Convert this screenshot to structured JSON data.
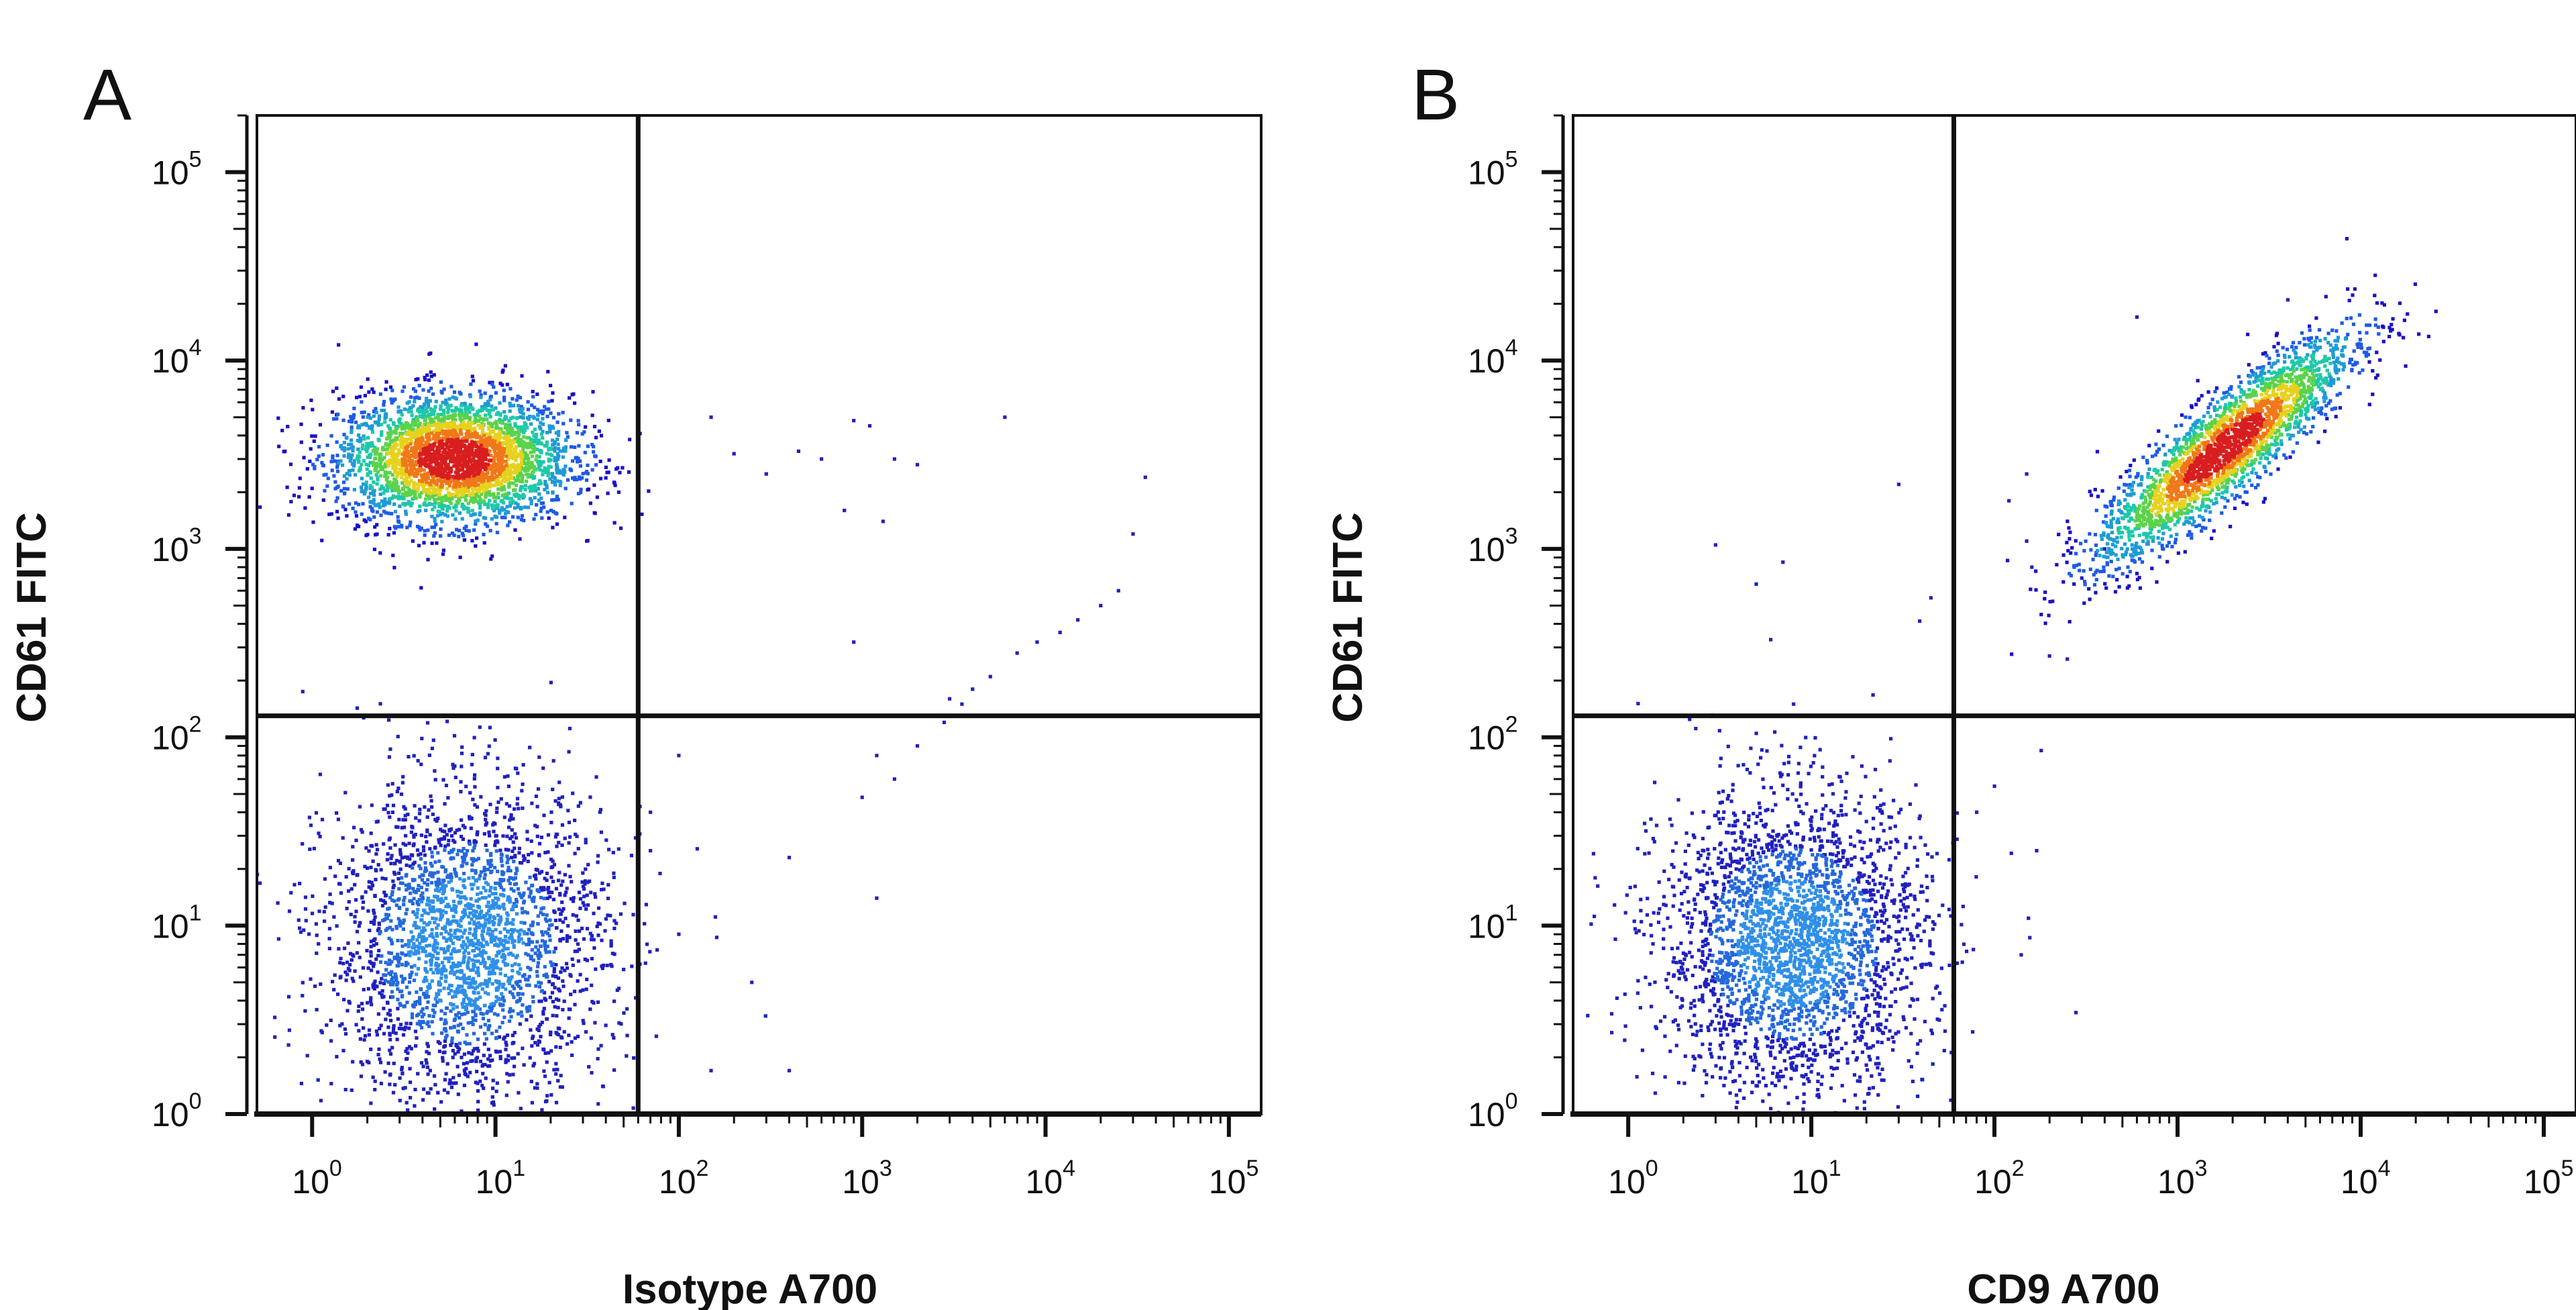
{
  "chart_data": [
    {
      "panel": "A",
      "type": "scatter",
      "xlabel": "Isotype A700",
      "ylabel": "CD61 FITC",
      "x_scale": "log",
      "y_scale": "log",
      "xlim": [
        0.5,
        150000
      ],
      "ylim": [
        1,
        200000
      ],
      "x_ticks": [
        {
          "base": "10",
          "exp": "0"
        },
        {
          "base": "10",
          "exp": "1"
        },
        {
          "base": "10",
          "exp": "2"
        },
        {
          "base": "10",
          "exp": "3"
        },
        {
          "base": "10",
          "exp": "4"
        },
        {
          "base": "10",
          "exp": "5"
        }
      ],
      "y_ticks": [
        {
          "base": "10",
          "exp": "0"
        },
        {
          "base": "10",
          "exp": "1"
        },
        {
          "base": "10",
          "exp": "2"
        },
        {
          "base": "10",
          "exp": "3"
        },
        {
          "base": "10",
          "exp": "4"
        },
        {
          "base": "10",
          "exp": "5"
        }
      ],
      "quadrant_gate": {
        "x": 60,
        "y": 130
      },
      "populations": [
        {
          "center": [
            6,
            3000
          ],
          "spread_decades": [
            0.32,
            0.17
          ],
          "count": 3200,
          "density_colored": true
        },
        {
          "center": [
            7,
            8
          ],
          "spread_decades": [
            0.38,
            0.42
          ],
          "count": 2600,
          "density_colored": false
        }
      ],
      "sparse_events": [
        [
          150,
          5000
        ],
        [
          200,
          3200
        ],
        [
          300,
          2500
        ],
        [
          450,
          3300
        ],
        [
          600,
          3000
        ],
        [
          900,
          4800
        ],
        [
          1100,
          4500
        ],
        [
          1500,
          3000
        ],
        [
          2000,
          2800
        ],
        [
          800,
          1600
        ],
        [
          1300,
          1400
        ],
        [
          6000,
          5000
        ],
        [
          900,
          320
        ],
        [
          1500,
          60
        ],
        [
          2000,
          90
        ],
        [
          2800,
          120
        ],
        [
          3500,
          150
        ],
        [
          5000,
          210
        ],
        [
          7000,
          280
        ],
        [
          9000,
          320
        ],
        [
          12000,
          360
        ],
        [
          15000,
          420
        ],
        [
          20000,
          500
        ],
        [
          25000,
          600
        ],
        [
          35000,
          2400
        ],
        [
          30000,
          1200
        ],
        [
          3000,
          160
        ],
        [
          4000,
          180
        ],
        [
          1200,
          80
        ],
        [
          1000,
          48
        ],
        [
          1200,
          14
        ],
        [
          400,
          23
        ],
        [
          100,
          80
        ],
        [
          100,
          9
        ],
        [
          250,
          5
        ],
        [
          150,
          1.7
        ],
        [
          400,
          1.7
        ],
        [
          70,
          40
        ],
        [
          70,
          25
        ]
      ]
    },
    {
      "panel": "B",
      "type": "scatter",
      "xlabel": "CD9 A700",
      "ylabel": "CD61 FITC",
      "x_scale": "log",
      "y_scale": "log",
      "xlim": [
        0.5,
        150000
      ],
      "ylim": [
        1,
        200000
      ],
      "x_ticks": [
        {
          "base": "10",
          "exp": "0"
        },
        {
          "base": "10",
          "exp": "1"
        },
        {
          "base": "10",
          "exp": "2"
        },
        {
          "base": "10",
          "exp": "3"
        },
        {
          "base": "10",
          "exp": "4"
        },
        {
          "base": "10",
          "exp": "5"
        }
      ],
      "y_ticks": [
        {
          "base": "10",
          "exp": "0"
        },
        {
          "base": "10",
          "exp": "1"
        },
        {
          "base": "10",
          "exp": "2"
        },
        {
          "base": "10",
          "exp": "3"
        },
        {
          "base": "10",
          "exp": "4"
        },
        {
          "base": "10",
          "exp": "5"
        }
      ],
      "quadrant_gate": {
        "x": 60,
        "y": 130
      },
      "populations": [
        {
          "center": [
            1800,
            3400
          ],
          "spread_decades": [
            0.35,
            0.3
          ],
          "correlation": 0.88,
          "count": 2600,
          "density_colored": true
        },
        {
          "center": [
            8,
            8
          ],
          "spread_decades": [
            0.36,
            0.4
          ],
          "count": 2800,
          "density_colored": false
        }
      ],
      "sparse_events": [
        [
          3,
          1050
        ],
        [
          5,
          650
        ],
        [
          7,
          850
        ],
        [
          6,
          330
        ],
        [
          8,
          150
        ],
        [
          30,
          2200
        ],
        [
          45,
          550
        ],
        [
          150,
          2500
        ],
        [
          120,
          1800
        ],
        [
          150,
          1100
        ],
        [
          160,
          800
        ],
        [
          200,
          270
        ],
        [
          250,
          260
        ],
        [
          300,
          700
        ],
        [
          400,
          1000
        ],
        [
          600,
          17000
        ],
        [
          4000,
          21000
        ],
        [
          180,
          85
        ],
        [
          170,
          25
        ],
        [
          140,
          7
        ],
        [
          100,
          55
        ],
        [
          80,
          40
        ]
      ]
    }
  ],
  "panels": [
    {
      "letter": "A"
    },
    {
      "letter": "B"
    }
  ],
  "colors": {
    "density_ramp": [
      "#1a10c8",
      "#1f5ae6",
      "#1e9bd6",
      "#1ec8a8",
      "#5ad34a",
      "#e6d21e",
      "#f07818",
      "#d81e1e"
    ],
    "low_density": "#2020c0",
    "axis": "#111111"
  }
}
